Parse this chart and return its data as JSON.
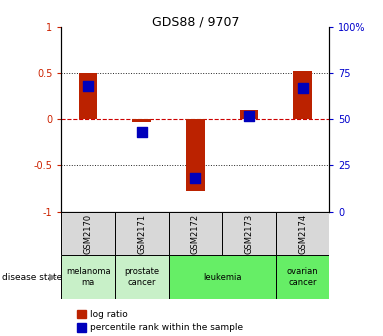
{
  "title": "GDS88 / 9707",
  "samples": [
    "GSM2170",
    "GSM2171",
    "GSM2172",
    "GSM2173",
    "GSM2174"
  ],
  "log_ratio": [
    0.5,
    -0.03,
    -0.78,
    0.1,
    0.52
  ],
  "percentile_rank": [
    68,
    43,
    18,
    52,
    67
  ],
  "ylim": [
    -1,
    1
  ],
  "ylim_right": [
    0,
    100
  ],
  "yticks_left": [
    -1,
    -0.5,
    0,
    0.5,
    1
  ],
  "yticks_right": [
    0,
    25,
    50,
    75,
    100
  ],
  "ytick_labels_left": [
    "-1",
    "-0.5",
    "0",
    "0.5",
    "1"
  ],
  "ytick_labels_right": [
    "0",
    "25",
    "50",
    "75",
    "100%"
  ],
  "disease_states": [
    {
      "label": "melanoma\nma",
      "start": 0,
      "end": 1,
      "color": "#c8f0c8"
    },
    {
      "label": "prostate\ncancer",
      "start": 1,
      "end": 2,
      "color": "#c8f0c8"
    },
    {
      "label": "leukemia",
      "start": 2,
      "end": 4,
      "color": "#66ee66"
    },
    {
      "label": "ovarian\ncancer",
      "start": 4,
      "end": 5,
      "color": "#66ee66"
    }
  ],
  "bar_color": "#bb2200",
  "dot_color": "#0000bb",
  "bar_width": 0.35,
  "dot_size": 45,
  "hline_zero_color": "#cc0000",
  "hline_dotted_color": "#222222",
  "sample_box_color": "#d8d8d8",
  "legend_logratio_color": "#bb2200",
  "legend_percentile_color": "#0000bb",
  "title_fontsize": 9
}
